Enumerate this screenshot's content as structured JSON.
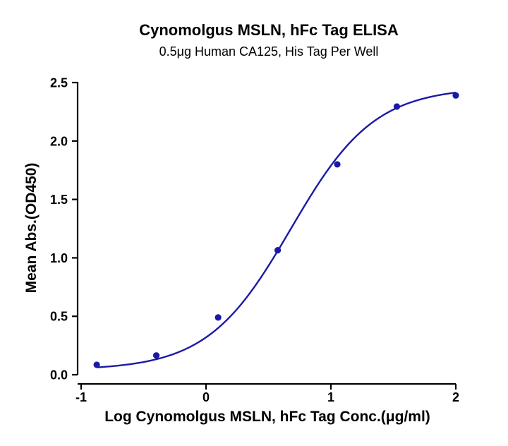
{
  "chart_data": {
    "type": "scatter",
    "title": "Cynomolgus MSLN, hFc Tag ELISA",
    "subtitle": "0.5μg Human CA125, His Tag Per Well",
    "xlabel": "Log Cynomolgus MSLN, hFc Tag Conc.(μg/ml)",
    "ylabel": "Mean Abs.(OD450)",
    "xlim": [
      -1,
      2
    ],
    "ylim": [
      0,
      2.5
    ],
    "x_ticks": [
      -1,
      0,
      1,
      2
    ],
    "x_tick_labels": [
      "-1",
      "0",
      "1",
      "2"
    ],
    "y_ticks": [
      0,
      0.5,
      1.0,
      1.5,
      2.0,
      2.5
    ],
    "y_tick_labels": [
      "0.0",
      "0.5",
      "1.0",
      "1.5",
      "2.0",
      "2.5"
    ],
    "grid": false,
    "legend": "none",
    "series": [
      {
        "color": "#1a1aa6",
        "x": [
          -0.875,
          -0.398,
          0.097,
          0.574,
          1.051,
          1.528,
          2.0
        ],
        "y": [
          0.085,
          0.165,
          0.49,
          1.065,
          1.8,
          2.295,
          2.39
        ],
        "fit": {
          "model": "4PL",
          "bottom": 0.04,
          "top": 2.46,
          "logEC50": 0.68,
          "hill": 1.3
        }
      }
    ]
  }
}
